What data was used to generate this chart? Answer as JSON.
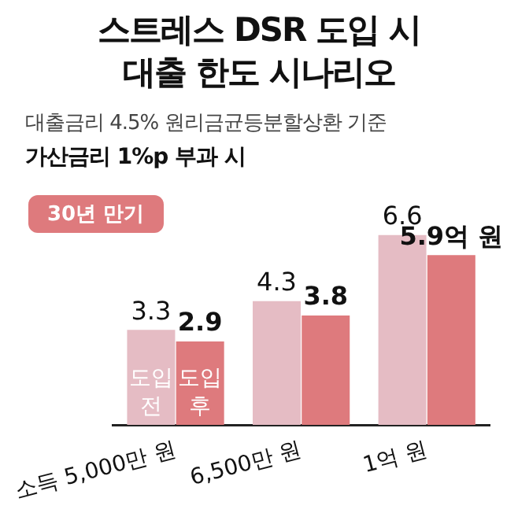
{
  "chart_data": {
    "type": "bar",
    "title": "스트레스 DSR 도입 시\n대출 한도 시나리오",
    "subtitle": "대출금리 4.5% 원리금균등분할상환 기준\n가산금리 1%p 부과 시",
    "annotations": [
      "30년 만기"
    ],
    "categories": [
      "소득 5,000만 원",
      "6,500만 원",
      "1억 원"
    ],
    "series": [
      {
        "name": "도입 전",
        "color": "#e5bcc4",
        "values": [
          3.3,
          4.3,
          6.6
        ],
        "value_labels": [
          "3.3",
          "4.3",
          "6.6"
        ]
      },
      {
        "name": "도입 후",
        "color": "#de7a7d",
        "values": [
          2.9,
          3.8,
          5.9
        ],
        "value_labels": [
          "2.9",
          "3.8",
          "5.9억 원"
        ]
      }
    ],
    "grid": false,
    "legend": false
  }
}
